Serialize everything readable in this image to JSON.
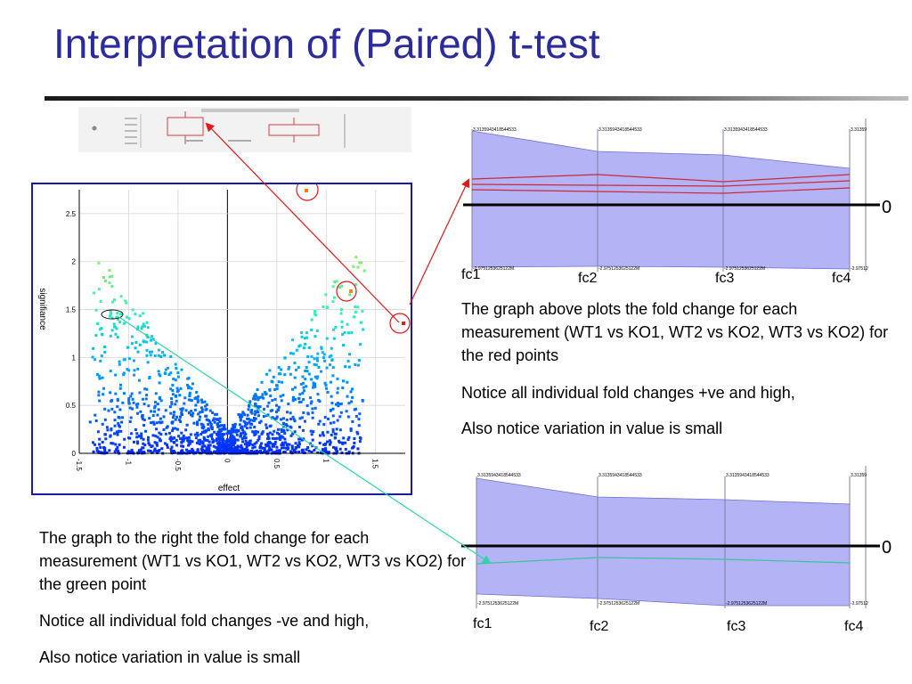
{
  "slide": {
    "title": "Interpretation of (Paired) t-test",
    "text_top_1": "The graph above plots the fold change for each measurement (WT1 vs KO1, WT2 vs KO2, WT3 vs KO2) for the red points",
    "text_top_2": "Notice all individual fold changes +ve and high,",
    "text_top_3": "Also notice variation in value is small",
    "text_bottom_1": "The graph to the right the fold change for each measurement (WT1 vs KO1, WT2 vs KO2, WT3 vs KO2) for the green point",
    "text_bottom_2": "Notice all individual fold changes -ve and high,",
    "text_bottom_3": "Also notice variation in value is small"
  },
  "volcano": {
    "xlabel": "effect",
    "ylabel": "signifiance",
    "xticks": [
      "-1.5",
      "-1",
      "-0.5",
      "0",
      "0.5",
      "1",
      "1.5"
    ],
    "yticks": [
      "0",
      "0.5",
      "1",
      "1.5",
      "2",
      "2.5"
    ],
    "xlim": [
      -1.5,
      1.8
    ],
    "ylim": [
      0,
      2.75
    ]
  },
  "parallel_top": {
    "axes": [
      "fc1",
      "fc2",
      "fc3",
      "fc4"
    ],
    "zero_label": "0",
    "max_label": "3.3135943418544533",
    "max_label_last": "3.31359",
    "min_label": "-2.9751253625122M",
    "min_label_last": "-2.97512",
    "band_color": "#b3b3f5",
    "line_color": "#cc2a3a"
  },
  "parallel_bottom": {
    "axes": [
      "fc1",
      "fc2",
      "fc3",
      "fc4"
    ],
    "zero_label": "0",
    "max_label": "3.3135943418544533",
    "max_label_last": "3.31359",
    "min_label": "-2.9751253625122M",
    "min_label_last": "-2.97512",
    "band_color": "#b3b3f5",
    "line_color": "#3cc39a"
  },
  "colors": {
    "title": "#2b2b9a",
    "red_arrow": "#e01818",
    "green_arrow": "#2fd4a8",
    "frame": "#1a1aa8"
  }
}
